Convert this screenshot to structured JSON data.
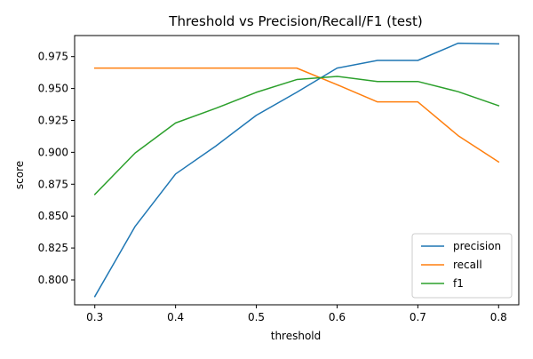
{
  "chart_data": {
    "type": "line",
    "title": "Threshold vs Precision/Recall/F1 (test)",
    "xlabel": "threshold",
    "ylabel": "score",
    "x": [
      0.3,
      0.35,
      0.4,
      0.45,
      0.5,
      0.55,
      0.6,
      0.65,
      0.7,
      0.75,
      0.8
    ],
    "xlim": [
      0.275,
      0.825
    ],
    "ylim": [
      0.7805,
      0.9915
    ],
    "x_ticks": [
      0.3,
      0.4,
      0.5,
      0.6,
      0.7,
      0.8
    ],
    "x_tick_labels": [
      "0.3",
      "0.4",
      "0.5",
      "0.6",
      "0.7",
      "0.8"
    ],
    "y_ticks": [
      0.8,
      0.825,
      0.85,
      0.875,
      0.9,
      0.925,
      0.95,
      0.975
    ],
    "y_tick_labels": [
      "0.800",
      "0.825",
      "0.850",
      "0.875",
      "0.900",
      "0.925",
      "0.950",
      "0.975"
    ],
    "grid": false,
    "legend_position": "lower-right",
    "series": [
      {
        "name": "precision",
        "color": "#1f77b4",
        "values": [
          0.787,
          0.842,
          0.883,
          0.905,
          0.929,
          0.947,
          0.966,
          0.972,
          0.972,
          0.9855,
          0.985
        ]
      },
      {
        "name": "recall",
        "color": "#ff7f0e",
        "values": [
          0.966,
          0.966,
          0.966,
          0.966,
          0.966,
          0.966,
          0.953,
          0.9395,
          0.9395,
          0.913,
          0.8925
        ]
      },
      {
        "name": "f1",
        "color": "#2ca02c",
        "values": [
          0.867,
          0.8995,
          0.923,
          0.9345,
          0.947,
          0.957,
          0.9595,
          0.9555,
          0.9555,
          0.9475,
          0.9365
        ]
      }
    ]
  }
}
